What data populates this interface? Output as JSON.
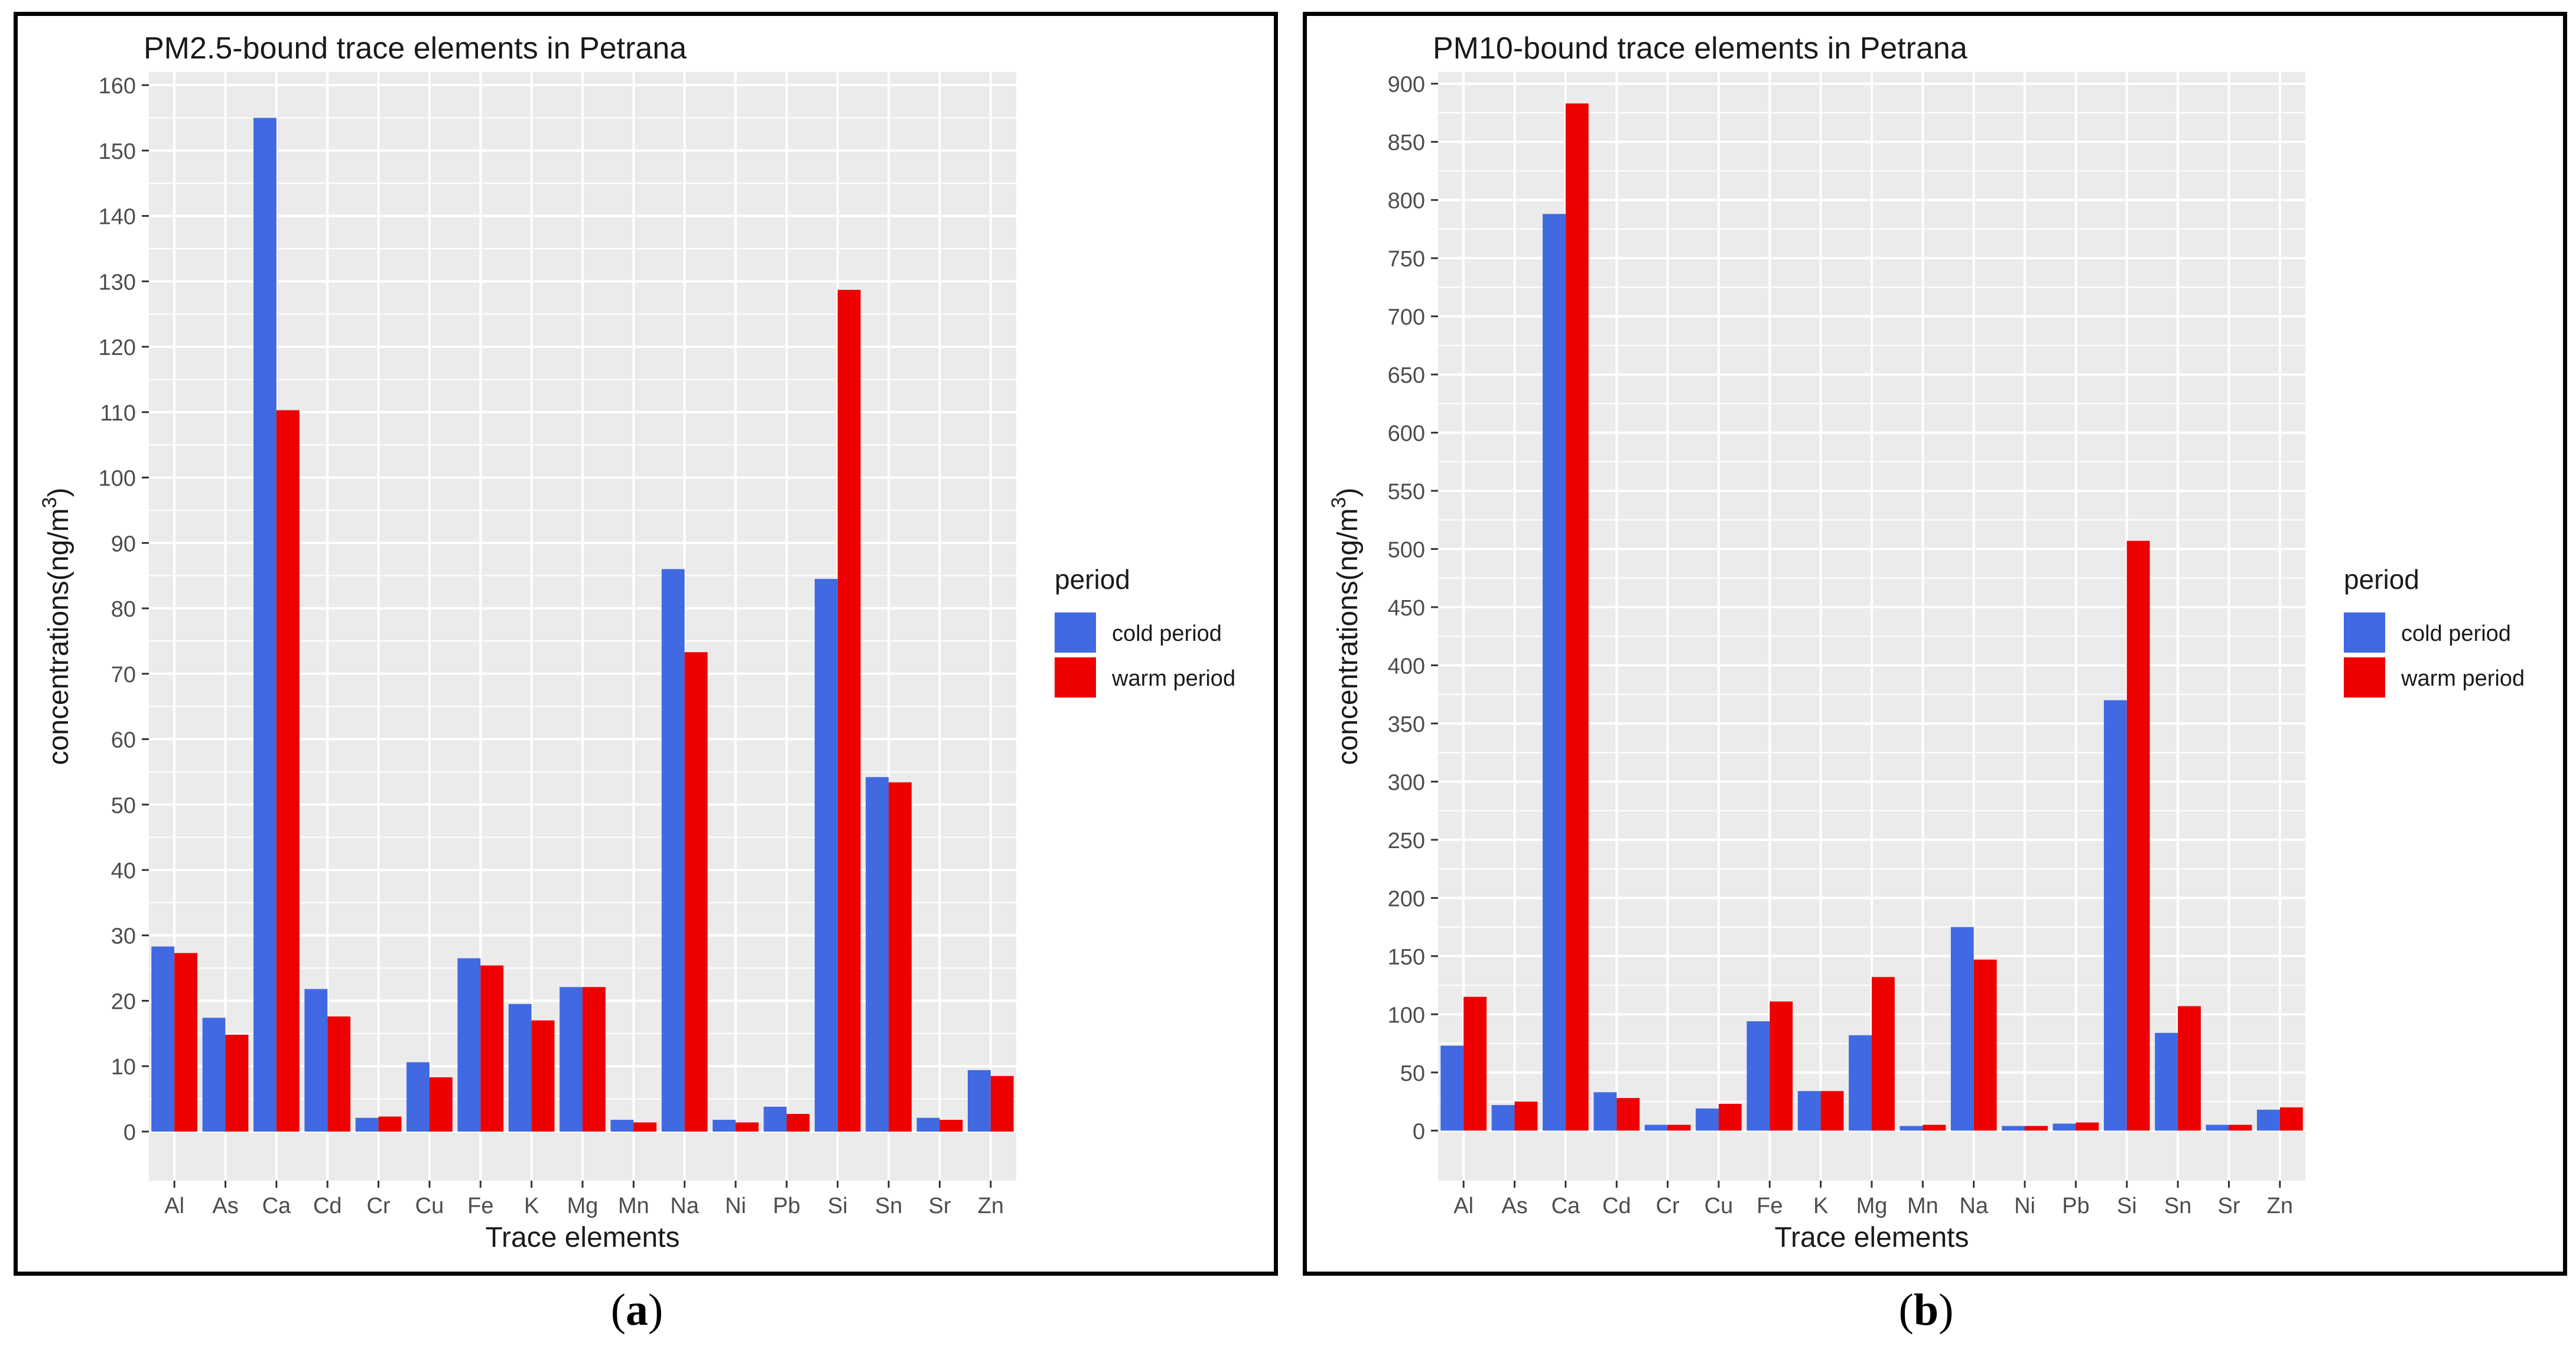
{
  "colors": {
    "panel_background": "#EBEBEB",
    "gridline": "#FFFFFF",
    "cold": "#4169E1",
    "warm": "#EE0000",
    "text": "#1A1A1A",
    "tick_text": "#4D4D4D"
  },
  "captions": {
    "a": "a",
    "b": "b"
  },
  "chart_data": [
    {
      "type": "bar",
      "title": "PM2.5-bound trace elements in Petrana",
      "xlabel": "Trace elements",
      "ylabel": "concentrations(ng/m",
      "ylabel_sup": "3",
      "ylabel_close": ")",
      "ylim": [
        -7.5,
        162
      ],
      "yticks": [
        0,
        10,
        20,
        30,
        40,
        50,
        60,
        70,
        80,
        90,
        100,
        110,
        120,
        130,
        140,
        150,
        160
      ],
      "legend_title": "period",
      "legend_position": "right",
      "categories": [
        "Al",
        "As",
        "Ca",
        "Cd",
        "Cr",
        "Cu",
        "Fe",
        "K",
        "Mg",
        "Mn",
        "Na",
        "Ni",
        "Pb",
        "Si",
        "Sn",
        "Sr",
        "Zn"
      ],
      "series": [
        {
          "name": "cold period",
          "values": [
            28.3,
            17.4,
            155.0,
            21.8,
            2.1,
            10.6,
            26.5,
            19.5,
            22.1,
            1.8,
            86.0,
            1.8,
            3.8,
            84.5,
            54.2,
            2.1,
            9.4
          ]
        },
        {
          "name": "warm period",
          "values": [
            27.3,
            14.8,
            110.3,
            17.6,
            2.3,
            8.3,
            25.4,
            17.0,
            22.1,
            1.4,
            73.3,
            1.4,
            2.7,
            128.7,
            53.4,
            1.8,
            8.5
          ]
        }
      ]
    },
    {
      "type": "bar",
      "title": "PM10-bound trace elements in Petrana",
      "xlabel": "Trace elements",
      "ylabel": "concentrations(ng/m",
      "ylabel_sup": "3",
      "ylabel_close": ")",
      "ylim": [
        -43,
        910
      ],
      "yticks": [
        0,
        50,
        100,
        150,
        200,
        250,
        300,
        350,
        400,
        450,
        500,
        550,
        600,
        650,
        700,
        750,
        800,
        850,
        900
      ],
      "legend_title": "period",
      "legend_position": "right",
      "categories": [
        "Al",
        "As",
        "Ca",
        "Cd",
        "Cr",
        "Cu",
        "Fe",
        "K",
        "Mg",
        "Mn",
        "Na",
        "Ni",
        "Pb",
        "Si",
        "Sn",
        "Sr",
        "Zn"
      ],
      "series": [
        {
          "name": "cold period",
          "values": [
            73,
            22,
            788,
            33,
            5,
            19,
            94,
            34,
            82,
            4,
            175,
            4,
            6,
            370,
            84,
            5,
            18
          ]
        },
        {
          "name": "warm period",
          "values": [
            115,
            25,
            883,
            28,
            5,
            23,
            111,
            34,
            132,
            5,
            147,
            4,
            7,
            507,
            107,
            5,
            20
          ]
        }
      ]
    }
  ]
}
